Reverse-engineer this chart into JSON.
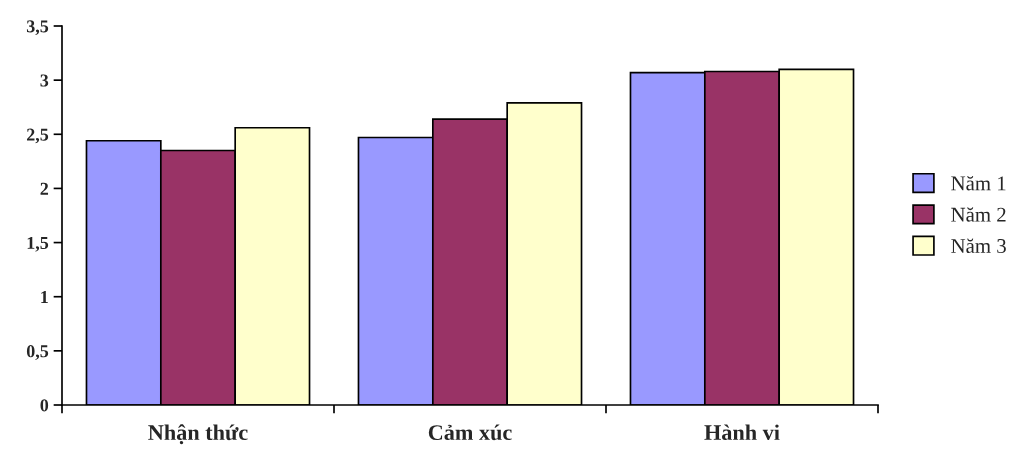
{
  "chart_data": {
    "type": "bar",
    "categories": [
      "Nhận thức",
      "Cảm xúc",
      "Hành vi"
    ],
    "series": [
      {
        "name": "Năm 1",
        "color": "#9999ff",
        "values": [
          2.44,
          2.47,
          3.07
        ]
      },
      {
        "name": "Năm 2",
        "color": "#993366",
        "values": [
          2.35,
          2.64,
          3.08
        ]
      },
      {
        "name": "Năm 3",
        "color": "#ffffcc",
        "values": [
          2.56,
          2.79,
          3.1
        ]
      }
    ],
    "ylim": [
      0,
      3.5
    ],
    "yticks": [
      0,
      {
        "value": 0.5,
        "label": "0,5"
      },
      1,
      {
        "value": 1.5,
        "label": "1,5"
      },
      2,
      {
        "value": 2.5,
        "label": "2,5"
      },
      3,
      {
        "value": 3.5,
        "label": "3,5"
      }
    ],
    "grid": false,
    "legend": "right"
  }
}
